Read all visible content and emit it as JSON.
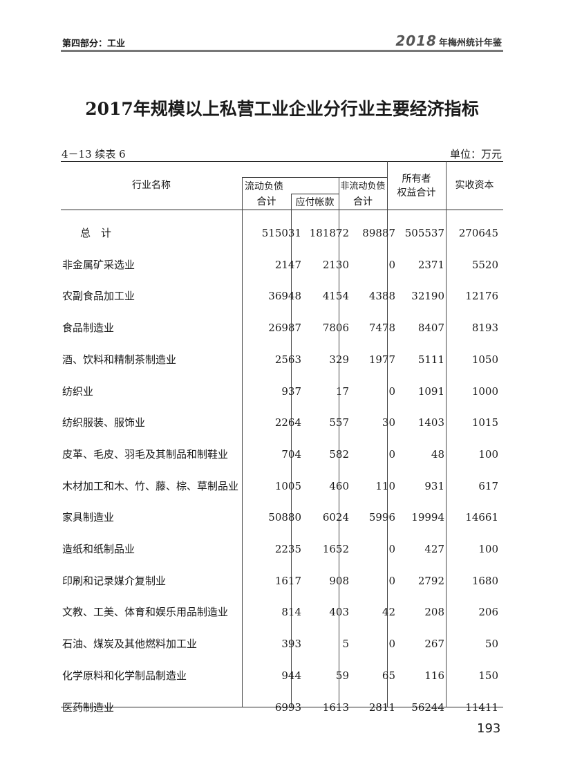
{
  "header": {
    "section": "第四部分：工业",
    "year": "2018",
    "book": "年梅州统计年鉴"
  },
  "title": "2017年规模以上私营工业企业分行业主要经济指标",
  "table_no": "4－13 续表 6",
  "unit": "单位：万元",
  "columns": {
    "name": "行业名称",
    "current_liab_group": "流动负债",
    "current_liab_total": "合计",
    "payables": "应付帐款",
    "noncurrent_liab_l1": "非流动负债",
    "noncurrent_liab_l2": "合计",
    "equity_l1": "所有者",
    "equity_l2": "权益合计",
    "paid_in_capital": "实收资本"
  },
  "rows": [
    {
      "name": "总　计",
      "v": [
        "515031",
        "181872",
        "89887",
        "505537",
        "270645"
      ]
    },
    {
      "name": "非金属矿采选业",
      "v": [
        "2147",
        "2130",
        "0",
        "2371",
        "5520"
      ]
    },
    {
      "name": "农副食品加工业",
      "v": [
        "36948",
        "4154",
        "4388",
        "32190",
        "12176"
      ]
    },
    {
      "name": "食品制造业",
      "v": [
        "26987",
        "7806",
        "7478",
        "8407",
        "8193"
      ]
    },
    {
      "name": "酒、饮料和精制茶制造业",
      "v": [
        "2563",
        "329",
        "1977",
        "5111",
        "1050"
      ]
    },
    {
      "name": "纺织业",
      "v": [
        "937",
        "17",
        "0",
        "1091",
        "1000"
      ]
    },
    {
      "name": "纺织服装、服饰业",
      "v": [
        "2264",
        "557",
        "30",
        "1403",
        "1015"
      ]
    },
    {
      "name": "皮革、毛皮、羽毛及其制品和制鞋业",
      "v": [
        "704",
        "582",
        "0",
        "48",
        "100"
      ]
    },
    {
      "name": "木材加工和木、竹、藤、棕、草制品业",
      "v": [
        "1005",
        "460",
        "110",
        "931",
        "617"
      ]
    },
    {
      "name": "家具制造业",
      "v": [
        "50880",
        "6024",
        "5996",
        "19994",
        "14661"
      ]
    },
    {
      "name": "造纸和纸制品业",
      "v": [
        "2235",
        "1652",
        "0",
        "427",
        "100"
      ]
    },
    {
      "name": "印刷和记录媒介复制业",
      "v": [
        "1617",
        "908",
        "0",
        "2792",
        "1680"
      ]
    },
    {
      "name": "文教、工美、体育和娱乐用品制造业",
      "v": [
        "814",
        "403",
        "42",
        "208",
        "206"
      ]
    },
    {
      "name": "石油、煤炭及其他燃料加工业",
      "v": [
        "393",
        "5",
        "0",
        "267",
        "50"
      ]
    },
    {
      "name": "化学原料和化学制品制造业",
      "v": [
        "944",
        "59",
        "65",
        "116",
        "150"
      ]
    },
    {
      "name": "医药制造业",
      "v": [
        "6993",
        "1613",
        "2811",
        "56244",
        "11411"
      ]
    }
  ],
  "page_number": "193"
}
